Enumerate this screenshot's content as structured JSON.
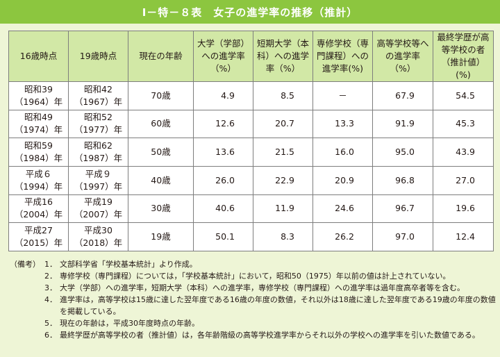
{
  "title": "Ⅰ－特－８表　女子の進学率の推移（推計）",
  "table": {
    "headers": [
      "16歳時点",
      "19歳時点",
      "現在の年齢",
      "大学（学部）への進学率（%）",
      "短期大学（本科）への進学率（%）",
      "専修学校（専門課程）への進学率(%)",
      "高等学校等への進学率（%）",
      "最終学歴が高等学校の者（推計値）(%)"
    ],
    "rows": [
      {
        "a1": "昭和39",
        "a2": "（1964）年",
        "b1": "昭和42",
        "b2": "（1967）年",
        "age": "70歳",
        "univ": "4.9",
        "junior": "8.5",
        "special": "－",
        "high": "67.9",
        "final": "54.5"
      },
      {
        "a1": "昭和49",
        "a2": "（1974）年",
        "b1": "昭和52",
        "b2": "（1977）年",
        "age": "60歳",
        "univ": "12.6",
        "junior": "20.7",
        "special": "13.3",
        "high": "91.9",
        "final": "45.3"
      },
      {
        "a1": "昭和59",
        "a2": "（1984）年",
        "b1": "昭和62",
        "b2": "（1987）年",
        "age": "50歳",
        "univ": "13.6",
        "junior": "21.5",
        "special": "16.0",
        "high": "95.0",
        "final": "43.9"
      },
      {
        "a1": "平成６",
        "a2": "（1994）年",
        "b1": "平成９",
        "b2": "（1997）年",
        "age": "40歳",
        "univ": "26.0",
        "junior": "22.9",
        "special": "20.9",
        "high": "96.8",
        "final": "27.0"
      },
      {
        "a1": "平成16",
        "a2": "（2004）年",
        "b1": "平成19",
        "b2": "（2007）年",
        "age": "30歳",
        "univ": "40.6",
        "junior": "11.9",
        "special": "24.6",
        "high": "96.7",
        "final": "19.6"
      },
      {
        "a1": "平成27",
        "a2": "（2015）年",
        "b1": "平成30",
        "b2": "（2018）年",
        "age": "19歳",
        "univ": "50.1",
        "junior": "8.3",
        "special": "26.2",
        "high": "97.0",
        "final": "12.4"
      }
    ]
  },
  "notes": {
    "label": "（備考）",
    "items": [
      {
        "num": "1．",
        "text": "文部科学省「学校基本統計」より作成。"
      },
      {
        "num": "2．",
        "text": "専修学校（専門課程）については，「学校基本統計」において，昭和50（1975）年以前の値は計上されていない。"
      },
      {
        "num": "3．",
        "text": "大学（学部）への進学率，短期大学（本科）への進学率，専修学校（専門課程）への進学率は過年度高卒者等を含む。"
      },
      {
        "num": "4．",
        "text": "進学率は，高等学校は15歳に達した翌年度である16歳の年度の数値，それ以外は18歳に達した翌年度である19歳の年度の数値を掲載している。"
      },
      {
        "num": "5．",
        "text": "現在の年齢は，平成30年度時点の年齢。"
      },
      {
        "num": "6．",
        "text": "最終学歴が高等学校の者（推計値）は，各年齢階級の高等学校進学率からそれ以外の学校への進学率を引いた数値である。"
      }
    ]
  }
}
